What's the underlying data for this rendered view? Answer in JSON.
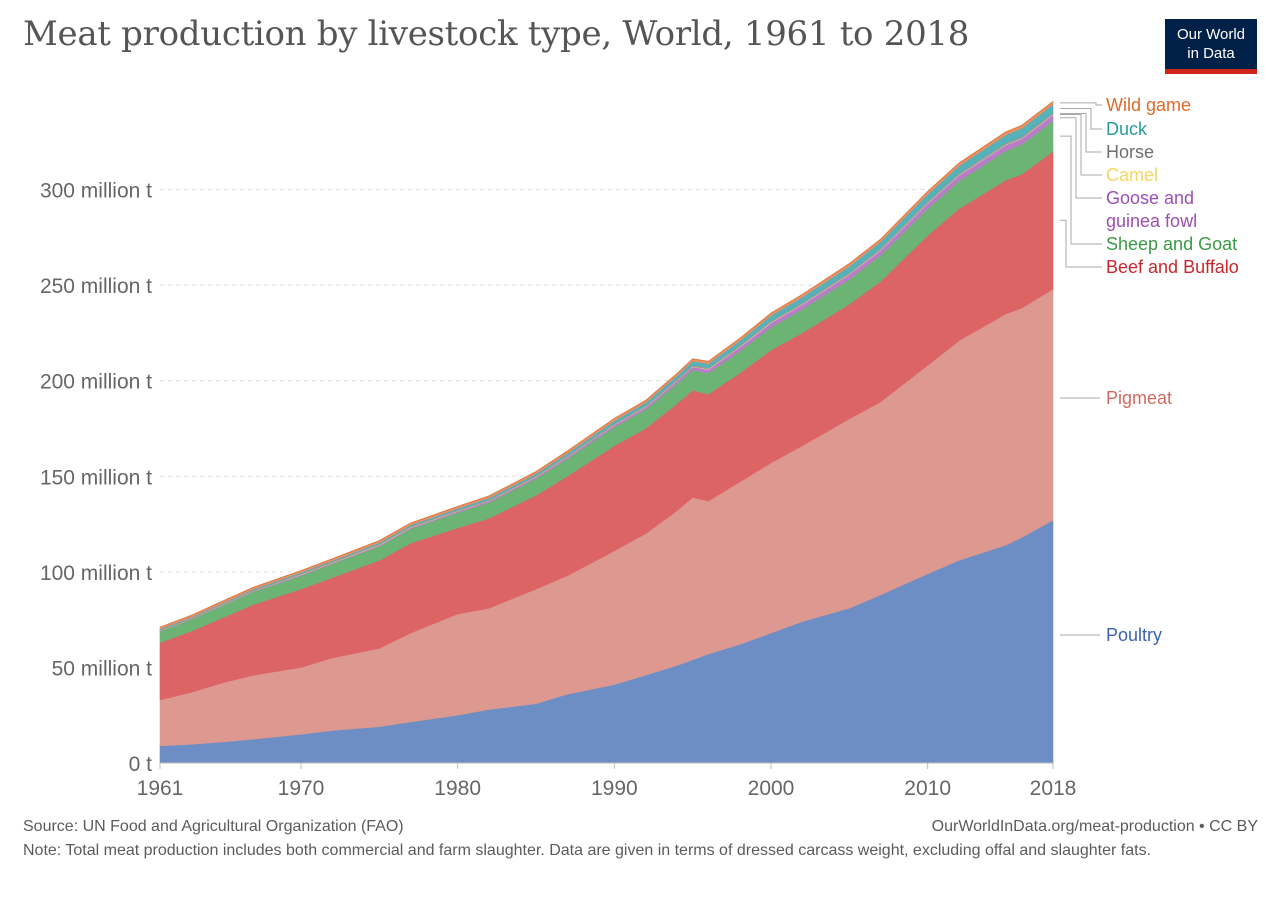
{
  "header": {
    "title": "Meat production by livestock type, World, 1961 to 2018",
    "logo_line1": "Our World",
    "logo_line2": "in Data"
  },
  "footer": {
    "source": "Source: UN Food and Agricultural Organization (FAO)",
    "url": "OurWorldInData.org/meat-production • CC BY",
    "note": "Note: Total meat production includes both commercial and farm slaughter. Data are given in terms of dressed carcass weight, excluding offal and slaughter fats."
  },
  "chart_data": {
    "type": "area",
    "stacked": true,
    "title": "Meat production by livestock type, World, 1961 to 2018",
    "xlabel": "",
    "ylabel": "",
    "unit": "million t",
    "xlim": [
      1961,
      2018
    ],
    "ylim": [
      0,
      350
    ],
    "grid": "horizontal dashed",
    "legend_placement": "right (inline labels)",
    "x_ticks": [
      "1961",
      "1970",
      "1980",
      "1990",
      "2000",
      "2010",
      "2018"
    ],
    "x_tick_values": [
      1961,
      1970,
      1980,
      1990,
      2000,
      2010,
      2018
    ],
    "y_ticks": [
      "0 t",
      "50 million t",
      "100 million t",
      "150 million t",
      "200 million t",
      "250 million t",
      "300 million t"
    ],
    "y_tick_values": [
      0,
      50,
      100,
      150,
      200,
      250,
      300
    ],
    "x": [
      1961,
      1963,
      1965,
      1967,
      1970,
      1972,
      1975,
      1977,
      1980,
      1982,
      1985,
      1987,
      1990,
      1992,
      1994,
      1995,
      1996,
      1998,
      2000,
      2002,
      2005,
      2007,
      2010,
      2012,
      2015,
      2016,
      2018
    ],
    "series": [
      {
        "name": "Poultry",
        "color": "#6d8ec4",
        "label_color": "#3c65a8",
        "values": [
          9.0,
          9.8,
          11.0,
          12.5,
          15.0,
          17.0,
          19.0,
          21.5,
          25.0,
          28.0,
          31.0,
          36.0,
          41.0,
          46.0,
          51.0,
          54.0,
          57.0,
          62.0,
          68.0,
          74.0,
          81.0,
          88.0,
          99.0,
          106.0,
          114.0,
          118.0,
          127.0
        ]
      },
      {
        "name": "Pigmeat",
        "color": "#dd9890",
        "label_color": "#d16a62",
        "values": [
          24.0,
          27.2,
          31.0,
          33.5,
          35.0,
          38.0,
          41.0,
          46.5,
          53.0,
          53.0,
          60.0,
          62.0,
          70.0,
          74.0,
          81.0,
          85.0,
          80.0,
          85.0,
          89.0,
          92.0,
          99.0,
          101.0,
          109.0,
          115.0,
          121.0,
          120.0,
          121.0
        ]
      },
      {
        "name": "Beef and Buffalo",
        "color": "#dc6465",
        "label_color": "#c8272c",
        "values": [
          30.0,
          32.0,
          34.0,
          37.0,
          41.0,
          42.0,
          46.0,
          47.0,
          45.0,
          47.0,
          49.0,
          52.0,
          55.0,
          55.0,
          56.0,
          56.0,
          56.0,
          57.0,
          59.0,
          59.0,
          60.0,
          63.0,
          68.0,
          69.0,
          70.0,
          70.0,
          72.0
        ]
      },
      {
        "name": "Sheep and Goat",
        "color": "#6cb474",
        "label_color": "#3a9a46",
        "values": [
          6.0,
          6.2,
          6.5,
          6.7,
          7.0,
          7.2,
          7.4,
          7.6,
          8.0,
          8.3,
          8.8,
          9.2,
          9.8,
          10.0,
          10.5,
          10.7,
          11.0,
          11.5,
          12.0,
          12.4,
          13.0,
          13.6,
          14.0,
          14.5,
          15.3,
          15.6,
          16.0
        ]
      },
      {
        "name": "Goose and guinea fowl",
        "color": "#b97dc8",
        "label_color": "#9c4fb4",
        "values": [
          0.2,
          0.2,
          0.3,
          0.3,
          0.4,
          0.4,
          0.5,
          0.5,
          0.6,
          0.7,
          0.8,
          0.9,
          1.0,
          1.2,
          1.4,
          1.6,
          1.8,
          2.0,
          2.3,
          2.4,
          2.6,
          2.7,
          2.8,
          2.9,
          3.0,
          3.0,
          3.1
        ]
      },
      {
        "name": "Camel",
        "color": "#f2d98a",
        "label_color": "#f5d563",
        "values": [
          0.1,
          0.1,
          0.1,
          0.1,
          0.2,
          0.2,
          0.2,
          0.2,
          0.2,
          0.2,
          0.2,
          0.2,
          0.2,
          0.2,
          0.2,
          0.2,
          0.3,
          0.3,
          0.3,
          0.3,
          0.3,
          0.3,
          0.3,
          0.3,
          0.3,
          0.3,
          0.3
        ]
      },
      {
        "name": "Horse",
        "color": "#9a9a9a",
        "label_color": "#6e6e6e",
        "values": [
          0.6,
          0.6,
          0.6,
          0.6,
          0.6,
          0.6,
          0.6,
          0.6,
          0.6,
          0.6,
          0.6,
          0.6,
          0.6,
          0.6,
          0.6,
          0.7,
          0.7,
          0.7,
          0.7,
          0.7,
          0.7,
          0.7,
          0.7,
          0.7,
          0.8,
          0.8,
          0.8
        ]
      },
      {
        "name": "Duck",
        "color": "#56b1b9",
        "label_color": "#2a9aa0",
        "values": [
          0.3,
          0.3,
          0.3,
          0.4,
          0.5,
          0.5,
          0.6,
          0.6,
          0.8,
          0.9,
          1.0,
          1.2,
          1.5,
          1.6,
          1.9,
          2.0,
          2.1,
          2.4,
          2.8,
          3.0,
          3.3,
          3.5,
          3.8,
          4.0,
          4.3,
          4.3,
          4.4
        ]
      },
      {
        "name": "Wild game",
        "color": "#ec9060",
        "label_color": "#e16a2a",
        "values": [
          0.8,
          0.8,
          0.9,
          0.9,
          0.9,
          0.9,
          1.0,
          1.0,
          1.0,
          1.0,
          1.0,
          1.1,
          1.1,
          1.1,
          1.1,
          1.2,
          1.2,
          1.2,
          1.2,
          1.3,
          1.3,
          1.3,
          1.4,
          1.4,
          1.5,
          1.5,
          1.5
        ]
      }
    ]
  }
}
